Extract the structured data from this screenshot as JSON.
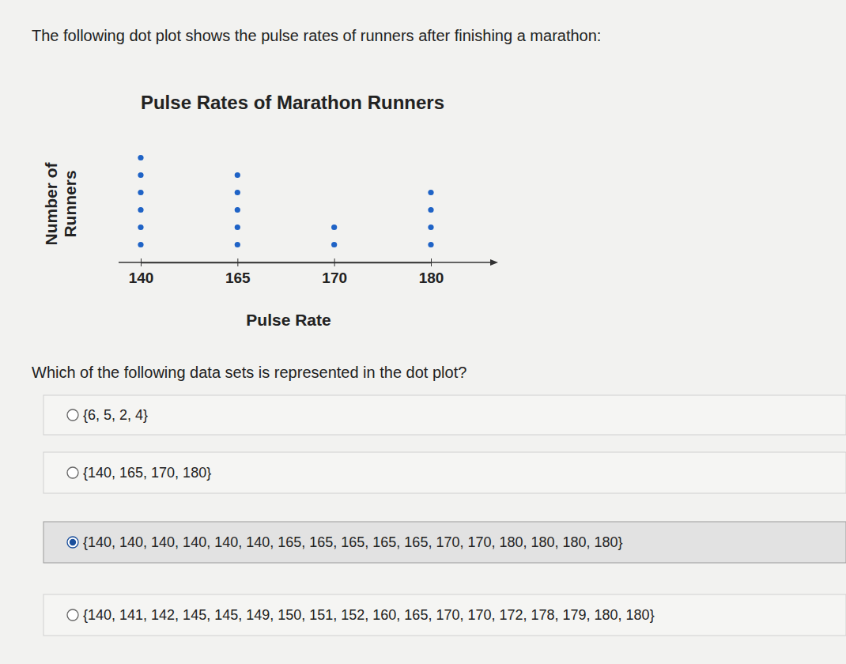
{
  "chart_data": {
    "type": "dot",
    "title": "Pulse Rates of Marathon Runners",
    "xlabel": "Pulse Rate",
    "ylabel": "Number of Runners",
    "categories": [
      140,
      165,
      170,
      180
    ],
    "values": [
      6,
      5,
      2,
      4
    ],
    "color": "#1f63c6",
    "tick_labels": "x",
    "grid": false
  },
  "page": {
    "intro": "The following dot plot shows the pulse rates of runners after finishing a marathon:",
    "question": "Which of the following data sets is represented in the dot plot?",
    "options": [
      "{6, 5, 2, 4}",
      "{140, 165, 170, 180}",
      "{140, 140, 140, 140, 140, 140, 165, 165, 165, 165, 165, 170, 170, 180, 180, 180, 180}",
      "{140, 141, 142, 145, 145, 149, 150, 151, 152, 160, 165, 170, 170, 172, 178, 179, 180, 180}"
    ],
    "selected": 2
  }
}
